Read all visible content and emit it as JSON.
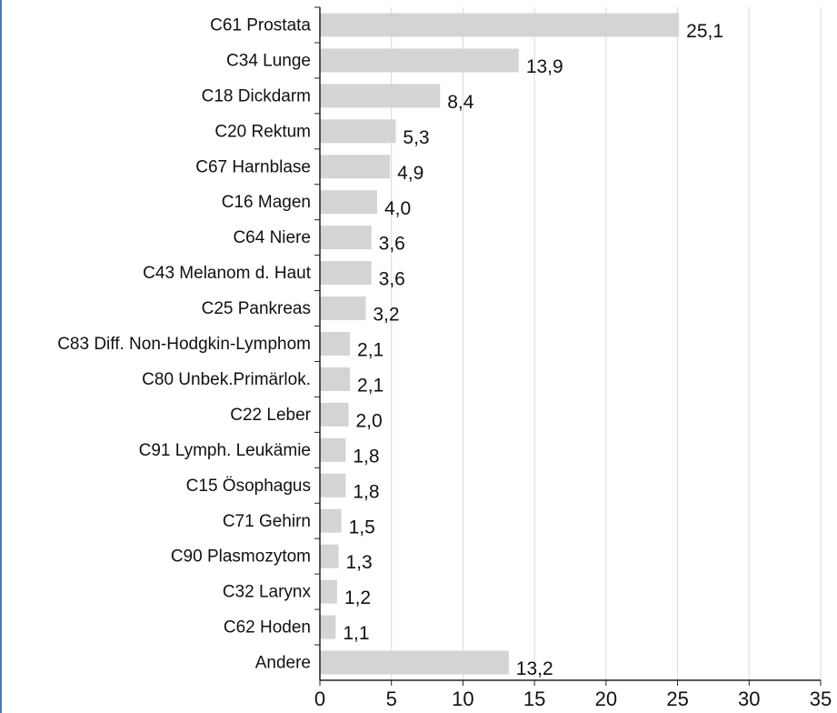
{
  "chart_data": {
    "type": "bar",
    "orientation": "horizontal",
    "categories": [
      "C61 Prostata",
      "C34 Lunge",
      "C18 Dickdarm",
      "C20 Rektum",
      "C67 Harnblase",
      "C16 Magen",
      "C64 Niere",
      "C43 Melanom d. Haut",
      "C25 Pankreas",
      "C83 Diff. Non-Hodgkin-Lymphom",
      "C80 Unbek.Primärlok.",
      "C22 Leber",
      "C91 Lymph. Leukämie",
      "C15 Ösophagus",
      "C71 Gehirn",
      "C90 Plasmozytom",
      "C32 Larynx",
      "C62 Hoden",
      "Andere"
    ],
    "values": [
      25.1,
      13.9,
      8.4,
      5.3,
      4.9,
      4.0,
      3.6,
      3.6,
      3.2,
      2.1,
      2.1,
      2.0,
      1.8,
      1.8,
      1.5,
      1.3,
      1.2,
      1.1,
      13.2
    ],
    "value_labels": [
      "25,1",
      "13,9",
      "8,4",
      "5,3",
      "4,9",
      "4,0",
      "3,6",
      "3,6",
      "3,2",
      "2,1",
      "2,1",
      "2,0",
      "1,8",
      "1,8",
      "1,5",
      "1,3",
      "1,2",
      "1,1",
      "13,2"
    ],
    "color": "#d4d4d4",
    "xlim": [
      0,
      35
    ],
    "xticks": [
      0,
      5,
      10,
      15,
      20,
      25,
      30,
      35
    ],
    "grid": true
  }
}
